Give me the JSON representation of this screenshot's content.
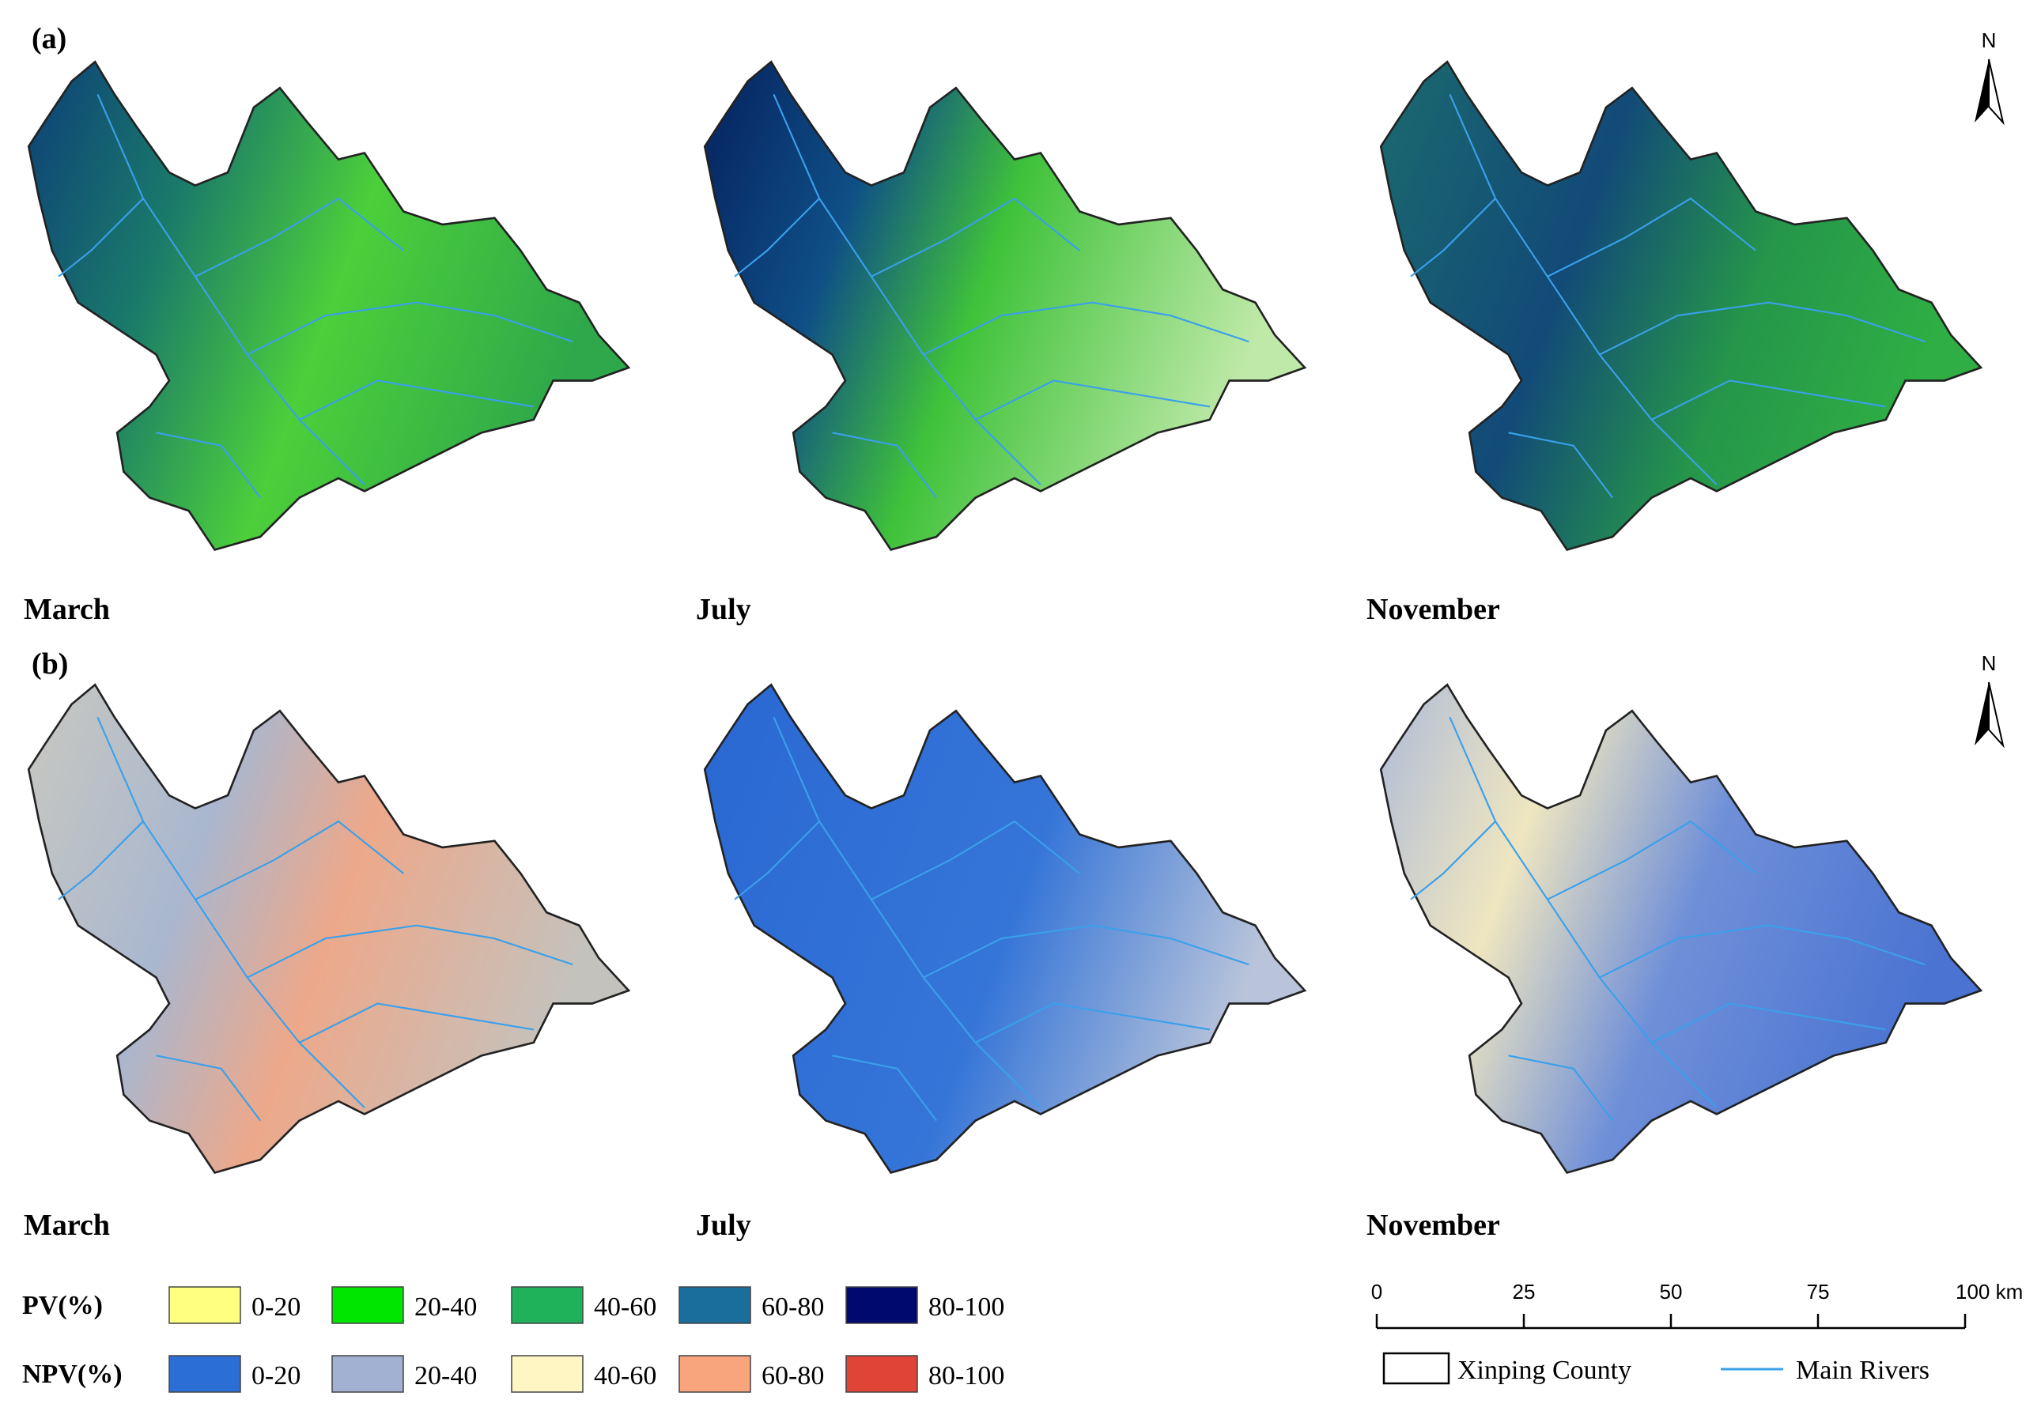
{
  "panels": [
    {
      "label": "(a)",
      "months": [
        "March",
        "July",
        "November"
      ]
    },
    {
      "label": "(b)",
      "months": [
        "March",
        "July",
        "November"
      ]
    }
  ],
  "north": "N",
  "legend": {
    "rows": [
      {
        "title": "PV(%)",
        "classes": [
          {
            "label": "0-20",
            "color": "#ffff80"
          },
          {
            "label": "20-40",
            "color": "#00e600"
          },
          {
            "label": "40-60",
            "color": "#20b25a"
          },
          {
            "label": "60-80",
            "color": "#1a6e9c"
          },
          {
            "label": "80-100",
            "color": "#000a6e"
          }
        ]
      },
      {
        "title": "NPV(%)",
        "classes": [
          {
            "label": "0-20",
            "color": "#2b6fd6"
          },
          {
            "label": "20-40",
            "color": "#a2b0d2"
          },
          {
            "label": "40-60",
            "color": "#fff6c4"
          },
          {
            "label": "60-80",
            "color": "#f8a57e"
          },
          {
            "label": "80-100",
            "color": "#df4437"
          }
        ]
      }
    ]
  },
  "scale_bar": {
    "ticks": [
      "0",
      "25",
      "50",
      "75",
      "100 km"
    ]
  },
  "map_legend": {
    "county": "Xinping County",
    "rivers": "Main Rivers"
  }
}
